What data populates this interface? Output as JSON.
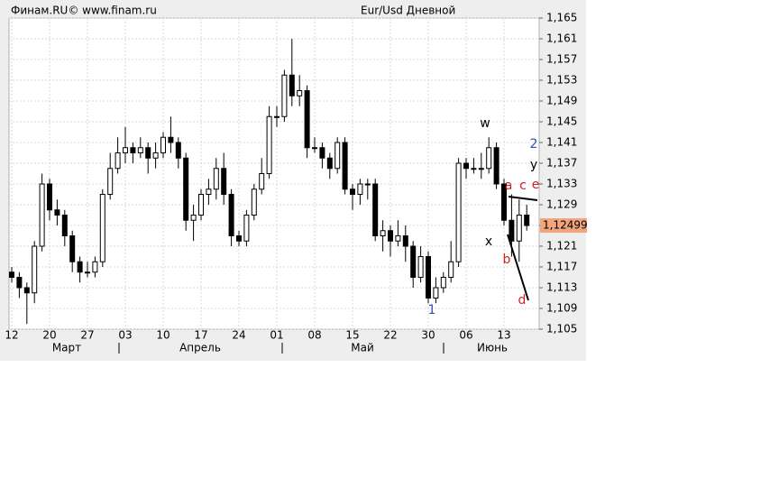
{
  "chart_data": {
    "type": "candlestick",
    "source": "Финам.RU©  www.finam.ru",
    "title": "Eur/Usd Дневной",
    "categories": [
      "12",
      null,
      null,
      null,
      null,
      "20",
      null,
      null,
      null,
      null,
      "27",
      null,
      null,
      null,
      null,
      "03",
      null,
      null,
      null,
      null,
      "10",
      null,
      null,
      null,
      null,
      "17",
      null,
      null,
      null,
      null,
      "24",
      null,
      null,
      null,
      null,
      "01",
      null,
      null,
      null,
      null,
      "08",
      null,
      null,
      null,
      null,
      "15",
      null,
      null,
      null,
      null,
      "22",
      null,
      null,
      null,
      null,
      "30",
      null,
      null,
      null,
      null,
      "06",
      null,
      null,
      null,
      null,
      "13",
      null,
      null,
      null
    ],
    "months": [
      "Март",
      "Апрель",
      "Май",
      "Июнь"
    ],
    "open": [
      1.116,
      1.115,
      1.113,
      1.112,
      1.121,
      1.133,
      1.128,
      1.127,
      1.123,
      1.118,
      1.116,
      1.116,
      1.118,
      1.131,
      1.136,
      1.139,
      1.14,
      1.139,
      1.14,
      1.138,
      1.139,
      1.142,
      1.141,
      1.138,
      1.126,
      1.127,
      1.131,
      1.132,
      1.136,
      1.131,
      1.123,
      1.122,
      1.127,
      1.132,
      1.135,
      1.146,
      1.146,
      1.154,
      1.15,
      1.151,
      1.14,
      1.14,
      1.138,
      1.136,
      1.141,
      1.132,
      1.131,
      1.133,
      1.133,
      1.123,
      1.124,
      1.122,
      1.123,
      1.121,
      1.115,
      1.119,
      1.111,
      1.113,
      1.115,
      1.118,
      1.137,
      1.136,
      1.136,
      1.136,
      1.14,
      1.133,
      1.126,
      1.122,
      1.127
    ],
    "high": [
      1.117,
      1.116,
      1.114,
      1.122,
      1.135,
      1.134,
      1.13,
      1.128,
      1.124,
      1.119,
      1.118,
      1.119,
      1.132,
      1.139,
      1.142,
      1.144,
      1.141,
      1.142,
      1.141,
      1.141,
      1.143,
      1.146,
      1.142,
      1.139,
      1.129,
      1.132,
      1.134,
      1.138,
      1.139,
      1.132,
      1.124,
      1.128,
      1.133,
      1.138,
      1.148,
      1.148,
      1.155,
      1.161,
      1.154,
      1.152,
      1.142,
      1.141,
      1.139,
      1.142,
      1.142,
      1.133,
      1.134,
      1.134,
      1.134,
      1.126,
      1.125,
      1.126,
      1.125,
      1.122,
      1.121,
      1.12,
      1.115,
      1.116,
      1.122,
      1.138,
      1.138,
      1.138,
      1.139,
      1.142,
      1.141,
      1.134,
      1.131,
      1.13,
      1.129
    ],
    "low": [
      1.114,
      1.111,
      1.106,
      1.11,
      1.12,
      1.126,
      1.125,
      1.121,
      1.116,
      1.114,
      1.115,
      1.115,
      1.117,
      1.13,
      1.135,
      1.137,
      1.137,
      1.138,
      1.135,
      1.136,
      1.138,
      1.139,
      1.136,
      1.124,
      1.122,
      1.126,
      1.129,
      1.13,
      1.129,
      1.121,
      1.121,
      1.121,
      1.126,
      1.131,
      1.134,
      1.144,
      1.145,
      1.148,
      1.148,
      1.138,
      1.139,
      1.136,
      1.134,
      1.135,
      1.131,
      1.128,
      1.129,
      1.13,
      1.122,
      1.12,
      1.119,
      1.121,
      1.118,
      1.113,
      1.114,
      1.11,
      1.11,
      1.112,
      1.114,
      1.117,
      1.134,
      1.135,
      1.134,
      1.135,
      1.132,
      1.125,
      1.119,
      1.118,
      1.124
    ],
    "close": [
      1.115,
      1.113,
      1.112,
      1.121,
      1.133,
      1.128,
      1.127,
      1.123,
      1.118,
      1.116,
      1.116,
      1.118,
      1.131,
      1.136,
      1.139,
      1.14,
      1.139,
      1.14,
      1.138,
      1.139,
      1.142,
      1.141,
      1.138,
      1.126,
      1.127,
      1.131,
      1.132,
      1.136,
      1.131,
      1.123,
      1.122,
      1.127,
      1.132,
      1.135,
      1.146,
      1.146,
      1.154,
      1.15,
      1.151,
      1.14,
      1.14,
      1.138,
      1.136,
      1.141,
      1.132,
      1.131,
      1.133,
      1.133,
      1.123,
      1.124,
      1.122,
      1.123,
      1.121,
      1.115,
      1.119,
      1.111,
      1.113,
      1.115,
      1.118,
      1.137,
      1.136,
      1.136,
      1.136,
      1.14,
      1.133,
      1.126,
      1.122,
      1.127,
      1.12499
    ],
    "up_color": "#ffffff",
    "down_color": "#000000",
    "ylim": [
      1.105,
      1.165
    ],
    "yticks": [
      {
        "value": 1.105,
        "label": "1,105"
      },
      {
        "value": 1.109,
        "label": "1,109"
      },
      {
        "value": 1.113,
        "label": "1,113"
      },
      {
        "value": 1.117,
        "label": "1,117"
      },
      {
        "value": 1.121,
        "label": "1,121"
      },
      {
        "value": 1.125,
        "label": "1,125"
      },
      {
        "value": 1.129,
        "label": "1,129"
      },
      {
        "value": 1.133,
        "label": "1,133"
      },
      {
        "value": 1.137,
        "label": "1,137"
      },
      {
        "value": 1.141,
        "label": "1,141"
      },
      {
        "value": 1.145,
        "label": "1,145"
      },
      {
        "value": 1.149,
        "label": "1,149"
      },
      {
        "value": 1.153,
        "label": "1,153"
      },
      {
        "value": 1.157,
        "label": "1,157"
      },
      {
        "value": 1.161,
        "label": "1,161"
      },
      {
        "value": 1.165,
        "label": "1,165"
      }
    ],
    "last_price": {
      "value": 1.12499,
      "label": "1,12499",
      "color": "#f4a47c"
    },
    "grid": true,
    "annotations": [
      {
        "text": "w",
        "color": "#000000"
      },
      {
        "text": "x",
        "color": "#000000"
      },
      {
        "text": "y",
        "color": "#000000"
      },
      {
        "text": "2",
        "color": "#3050b0"
      },
      {
        "text": "1",
        "color": "#3050b0"
      },
      {
        "text": "a",
        "color": "#d02020"
      },
      {
        "text": "c",
        "color": "#d02020"
      },
      {
        "text": "e",
        "color": "#d02020"
      },
      {
        "text": "b",
        "color": "#d02020"
      },
      {
        "text": "d",
        "color": "#d02020"
      }
    ]
  }
}
